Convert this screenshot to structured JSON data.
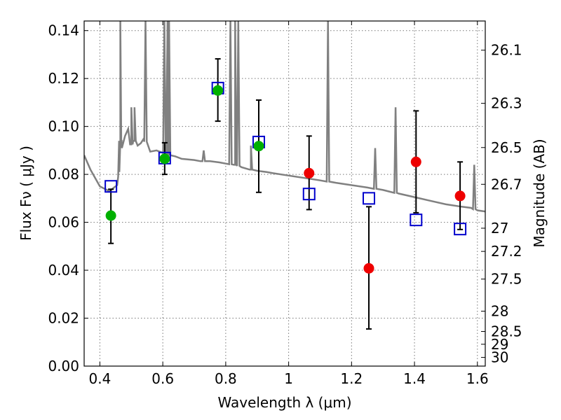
{
  "chart_data": {
    "type": "scatter",
    "x_axis": {
      "label": "Wavelength  λ (μm)",
      "range": [
        0.35,
        1.625
      ],
      "ticks": [
        0.4,
        0.6,
        0.8,
        1.0,
        1.2,
        1.4,
        1.6
      ],
      "tick_labels": [
        "0.4",
        "0.6",
        "0.8",
        "1",
        "1.2",
        "1.4",
        "1.6"
      ]
    },
    "y_axis": {
      "label": "Flux  Fν  ( μJy )",
      "range": [
        0.0,
        0.144
      ],
      "ticks": [
        0.0,
        0.02,
        0.04,
        0.06,
        0.08,
        0.1,
        0.12,
        0.14
      ],
      "tick_labels": [
        "0.00",
        "0.02",
        "0.04",
        "0.06",
        "0.08",
        "0.10",
        "0.12",
        "0.14"
      ]
    },
    "y2_axis": {
      "label": "Magnitude (AB)",
      "scale": "AB magnitude",
      "ticks": [
        26.1,
        26.3,
        26.5,
        26.7,
        27,
        27.2,
        27.5,
        28,
        28.5,
        29,
        30
      ],
      "tick_labels": [
        "26.1",
        "26.3",
        "26.5",
        "26.7",
        "27",
        "27.2",
        "27.5",
        "28",
        "28.5",
        "29",
        "30"
      ]
    },
    "grid": true,
    "colors": {
      "spectrum": "#808080",
      "optical_points": "#00b000",
      "nir_points": "#ee0000",
      "model_boxes": "#0000cc",
      "error_bars": "#000000"
    },
    "series": [
      {
        "marker": "circle",
        "color": "#00b000",
        "points": [
          {
            "x": 0.435,
            "y": 0.0628,
            "ylo": 0.0512,
            "yhi": 0.0738
          },
          {
            "x": 0.606,
            "y": 0.0865,
            "ylo": 0.08,
            "yhi": 0.0932
          },
          {
            "x": 0.775,
            "y": 0.115,
            "ylo": 0.1022,
            "yhi": 0.1282
          },
          {
            "x": 0.905,
            "y": 0.0918,
            "ylo": 0.0725,
            "yhi": 0.111
          }
        ]
      },
      {
        "marker": "circle",
        "color": "#ee0000",
        "points": [
          {
            "x": 1.065,
            "y": 0.0805,
            "ylo": 0.0653,
            "yhi": 0.096
          },
          {
            "x": 1.255,
            "y": 0.0408,
            "ylo": 0.0155,
            "yhi": 0.0665
          },
          {
            "x": 1.405,
            "y": 0.0852,
            "ylo": 0.064,
            "yhi": 0.1065
          },
          {
            "x": 1.545,
            "y": 0.071,
            "ylo": 0.057,
            "yhi": 0.0852
          }
        ]
      },
      {
        "marker": "open-square",
        "color": "#0000cc",
        "points": [
          {
            "x": 0.435,
            "y": 0.075
          },
          {
            "x": 0.606,
            "y": 0.0868
          },
          {
            "x": 0.775,
            "y": 0.116
          },
          {
            "x": 0.905,
            "y": 0.0935
          },
          {
            "x": 1.065,
            "y": 0.0718
          },
          {
            "x": 1.255,
            "y": 0.07
          },
          {
            "x": 1.405,
            "y": 0.061
          },
          {
            "x": 1.545,
            "y": 0.0572
          }
        ]
      },
      {
        "type": "line",
        "color": "#808080",
        "x": [
          0.35,
          0.37,
          0.4,
          0.43,
          0.445,
          0.455,
          0.458,
          0.462,
          0.465,
          0.468,
          0.47,
          0.48,
          0.49,
          0.5,
          0.51,
          0.52,
          0.53,
          0.54,
          0.56,
          0.58,
          0.6,
          0.62,
          0.64,
          0.66,
          0.7,
          0.72,
          0.75,
          0.78,
          0.8,
          0.83,
          0.85,
          0.88,
          0.9,
          0.93,
          0.95,
          1.0,
          1.05,
          1.1,
          1.15,
          1.2,
          1.25,
          1.3,
          1.35,
          1.4,
          1.45,
          1.5,
          1.55,
          1.58,
          1.6,
          1.625
        ],
        "y": [
          0.088,
          0.082,
          0.075,
          0.073,
          0.0745,
          0.0755,
          0.079,
          0.081,
          0.094,
          0.094,
          0.091,
          0.096,
          0.099,
          0.0925,
          0.094,
          0.092,
          0.093,
          0.095,
          0.0895,
          0.09,
          0.089,
          0.088,
          0.0875,
          0.0865,
          0.086,
          0.0855,
          0.0855,
          0.085,
          0.0845,
          0.084,
          0.083,
          0.082,
          0.0815,
          0.081,
          0.0805,
          0.0795,
          0.0785,
          0.0775,
          0.0765,
          0.0755,
          0.0745,
          0.0735,
          0.072,
          0.0705,
          0.069,
          0.0675,
          0.0665,
          0.066,
          0.065,
          0.0645
        ],
        "emission_lines": [
          {
            "x": 0.465,
            "peak": 0.144
          },
          {
            "x": 0.5,
            "peak": 0.108
          },
          {
            "x": 0.51,
            "peak": 0.108
          },
          {
            "x": 0.545,
            "peak": 0.144
          },
          {
            "x": 0.605,
            "peak": 0.144
          },
          {
            "x": 0.615,
            "peak": 0.144
          },
          {
            "x": 0.62,
            "peak": 0.144
          },
          {
            "x": 0.73,
            "peak": 0.09
          },
          {
            "x": 0.815,
            "peak": 0.144
          },
          {
            "x": 0.83,
            "peak": 0.144
          },
          {
            "x": 0.84,
            "peak": 0.144
          },
          {
            "x": 0.88,
            "peak": 0.092
          },
          {
            "x": 1.125,
            "peak": 0.144
          },
          {
            "x": 1.275,
            "peak": 0.091
          },
          {
            "x": 1.34,
            "peak": 0.108
          },
          {
            "x": 1.59,
            "peak": 0.084
          }
        ]
      }
    ]
  }
}
